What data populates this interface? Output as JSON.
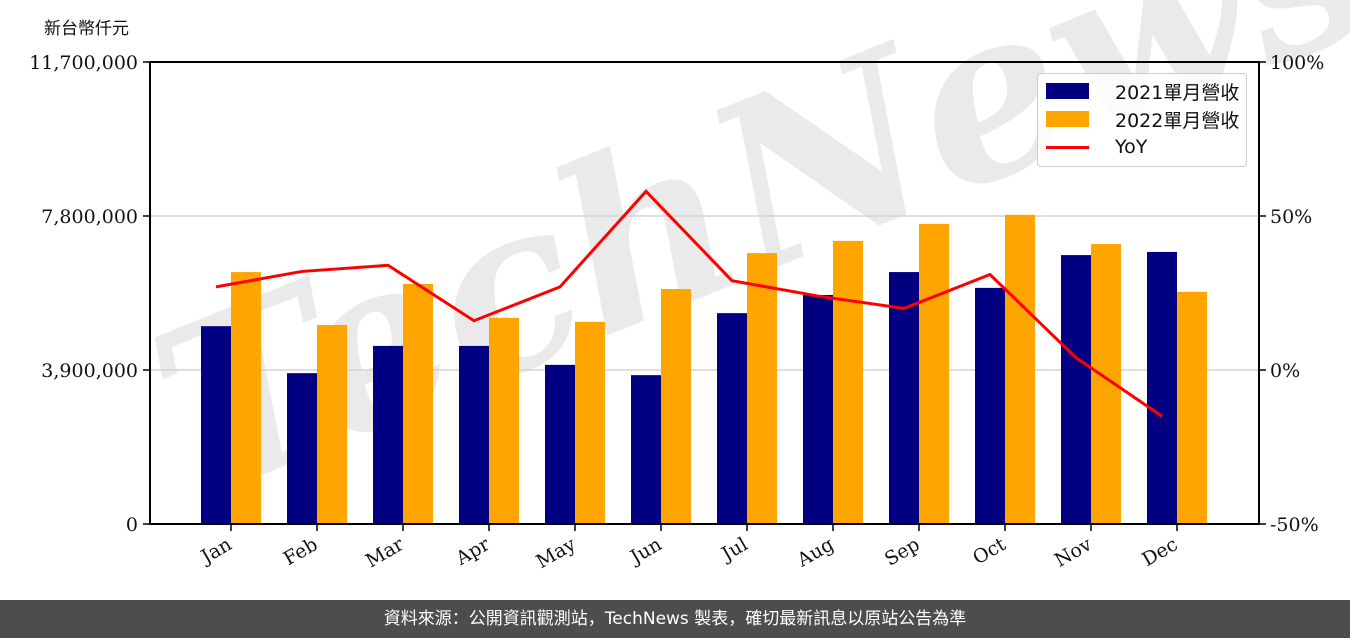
{
  "chart_data": {
    "type": "bar",
    "title": "",
    "unit_label": "新台幣仟元",
    "xlabel": "",
    "ylabel": "新台幣仟元",
    "y2label": "YoY",
    "categories": [
      "Jan",
      "Feb",
      "Mar",
      "Apr",
      "May",
      "Jun",
      "Jul",
      "Aug",
      "Sep",
      "Oct",
      "Nov",
      "Dec"
    ],
    "series": [
      {
        "name": "2021單月營收",
        "type": "bar",
        "axis": "left",
        "color": "#000080",
        "values": [
          5010000,
          3820000,
          4510000,
          4510000,
          4030000,
          3770000,
          5340000,
          5800000,
          6380000,
          5980000,
          6810000,
          6890000
        ]
      },
      {
        "name": "2022單月營收",
        "type": "bar",
        "axis": "left",
        "color": "#ffa500",
        "values": [
          6380000,
          5040000,
          6080000,
          5220000,
          5120000,
          5950000,
          6860000,
          7170000,
          7600000,
          7830000,
          7090000,
          5880000
        ]
      },
      {
        "name": "YoY",
        "type": "line",
        "axis": "right",
        "color": "#ff0000",
        "unit": "%",
        "values": [
          27,
          32,
          34,
          16,
          27,
          58,
          29,
          24,
          20,
          31,
          4,
          -15
        ]
      }
    ],
    "ylim": [
      0,
      11700000
    ],
    "y_ticks": [
      0,
      3900000,
      7800000,
      11700000
    ],
    "y_tick_labels": [
      "0",
      "3,900,000",
      "7,800,000",
      "11,700,000"
    ],
    "y2lim": [
      -50,
      100
    ],
    "y2_ticks": [
      -50,
      0,
      50,
      100
    ],
    "y2_tick_labels": [
      "-50%",
      "0%",
      "50%",
      "100%"
    ],
    "grid": true,
    "legend_position": "upper right",
    "watermark": "TechNews"
  },
  "legend": {
    "items": [
      {
        "label": "2021單月營收",
        "color": "#000080",
        "kind": "bar"
      },
      {
        "label": "2022單月營收",
        "color": "#ffa500",
        "kind": "bar"
      },
      {
        "label": "YoY",
        "color": "#ff0000",
        "kind": "line"
      }
    ]
  },
  "footer": {
    "text": "資料來源：公開資訊觀測站，TechNews 製表，確切最新訊息以原站公告為準"
  }
}
